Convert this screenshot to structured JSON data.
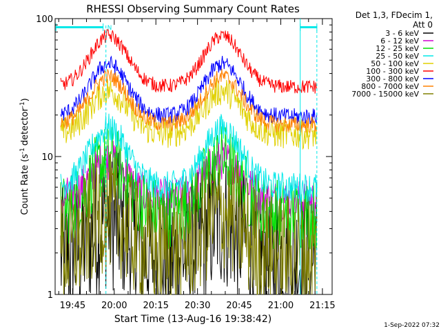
{
  "chart_data": {
    "type": "line",
    "title": "RHESSI Observing Summary Count Rates",
    "xlabel": "Start Time (13-Aug-16 19:38:42)",
    "ylabel": "Count Rate (s",
    "ylabel_sup": "-1",
    "ylabel_tail": "detector",
    "ylabel_sup2": "-1",
    "ylabel_close": ")",
    "y_scale": "log",
    "ylim": [
      1,
      100
    ],
    "y_ticks": [
      {
        "value": 1,
        "label": "1"
      },
      {
        "value": 10,
        "label": "10"
      },
      {
        "value": 100,
        "label": "100"
      }
    ],
    "x_range": [
      "19:38:42",
      "21:18:30"
    ],
    "x_ticks": [
      "19:45",
      "20:00",
      "20:15",
      "20:30",
      "20:45",
      "21:00",
      "21:15"
    ],
    "legend_header": [
      "Det 1,3, FDecim 1,",
      "Att 0"
    ],
    "legend_placement": "top-right",
    "timestamp": "1-Sep-2022 07:32",
    "attenuator_flag": "N",
    "series": [
      {
        "name": "3 - 6 keV",
        "color": "#000000",
        "base": 1.8,
        "peak": 3.5,
        "noise": 1.2
      },
      {
        "name": "6 - 12 keV",
        "color": "#d000d0",
        "base": 4.8,
        "peak": 9.5,
        "noise": 0.35
      },
      {
        "name": "12 - 25 keV",
        "color": "#00e000",
        "base": 3.8,
        "peak": 9.5,
        "noise": 0.6
      },
      {
        "name": "25 - 50 keV",
        "color": "#00e8e8",
        "base": 6.0,
        "peak": 16.0,
        "noise": 0.25
      },
      {
        "name": "50 - 100 keV",
        "color": "#e0d000",
        "base": 14.5,
        "peak": 30.0,
        "noise": 0.25
      },
      {
        "name": "100 - 300 keV",
        "color": "#ff0000",
        "base": 32.0,
        "peak": 75.0,
        "noise": 0.12
      },
      {
        "name": "300 - 800 keV",
        "color": "#0000ff",
        "base": 19.5,
        "peak": 47.0,
        "noise": 0.14
      },
      {
        "name": "800 - 7000 keV",
        "color": "#ff8000",
        "base": 17.0,
        "peak": 38.0,
        "noise": 0.14
      },
      {
        "name": "7000 - 15000 keV",
        "color": "#808000",
        "base": 2.0,
        "peak": 4.0,
        "noise": 1.0
      }
    ],
    "peaks_time": [
      "19:58",
      "20:39"
    ],
    "cyan_markers": {
      "dashed_lines": [
        "19:57",
        "21:13"
      ],
      "solid_line": "21:07",
      "bars": [
        [
          "19:39",
          "19:56"
        ],
        [
          "21:07",
          "21:13"
        ]
      ]
    }
  }
}
